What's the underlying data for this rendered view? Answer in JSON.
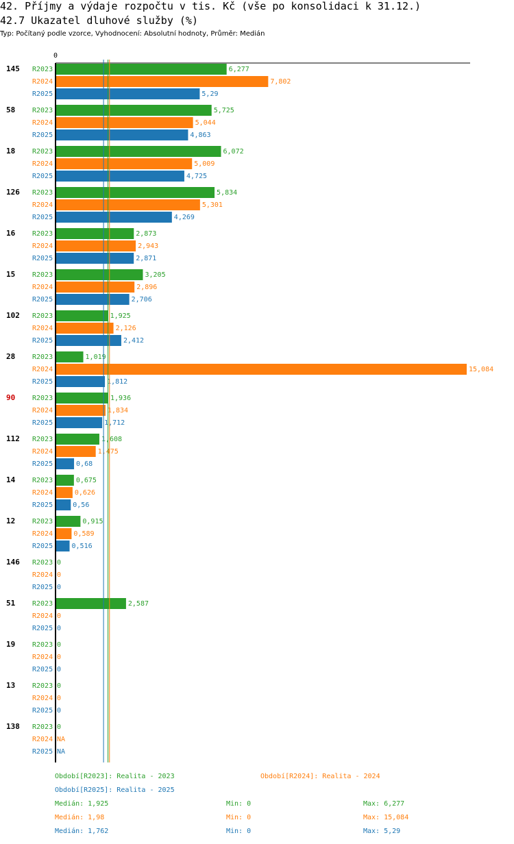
{
  "title": "42. Příjmy a výdaje rozpočtu v tis. Kč (vše po konsolidaci k 31.12.)",
  "subtitle": "42.7 Ukazatel dluhové služby (%)",
  "type_line": "Typ: Počítaný podle vzorce, Vyhodnocení: Absolutní hodnoty, Průměr: Medián",
  "colors": {
    "R2023": "#2ca02c",
    "R2024": "#ff7f0e",
    "R2025": "#1f77b4",
    "highlight": "#cc0000"
  },
  "chart_data": {
    "type": "bar",
    "orientation": "horizontal",
    "axis_zero_label": "0",
    "xlim": [
      0,
      15.084
    ],
    "series_names": [
      "R2023",
      "R2024",
      "R2025"
    ],
    "categories": [
      {
        "id": "145",
        "highlight": false,
        "values": [
          6.277,
          7.802,
          5.29
        ],
        "labels": [
          "6,277",
          "7,802",
          "5,29"
        ]
      },
      {
        "id": "58",
        "highlight": false,
        "values": [
          5.725,
          5.044,
          4.863
        ],
        "labels": [
          "5,725",
          "5,044",
          "4,863"
        ]
      },
      {
        "id": "18",
        "highlight": false,
        "values": [
          6.072,
          5.009,
          4.725
        ],
        "labels": [
          "6,072",
          "5,009",
          "4,725"
        ]
      },
      {
        "id": "126",
        "highlight": false,
        "values": [
          5.834,
          5.301,
          4.269
        ],
        "labels": [
          "5,834",
          "5,301",
          "4,269"
        ]
      },
      {
        "id": "16",
        "highlight": false,
        "values": [
          2.873,
          2.943,
          2.871
        ],
        "labels": [
          "2,873",
          "2,943",
          "2,871"
        ]
      },
      {
        "id": "15",
        "highlight": false,
        "values": [
          3.205,
          2.896,
          2.706
        ],
        "labels": [
          "3,205",
          "2,896",
          "2,706"
        ]
      },
      {
        "id": "102",
        "highlight": false,
        "values": [
          1.925,
          2.126,
          2.412
        ],
        "labels": [
          "1,925",
          "2,126",
          "2,412"
        ]
      },
      {
        "id": "28",
        "highlight": false,
        "values": [
          1.019,
          15.084,
          1.812
        ],
        "labels": [
          "1,019",
          "15,084",
          "1,812"
        ]
      },
      {
        "id": "90",
        "highlight": true,
        "values": [
          1.936,
          1.834,
          1.712
        ],
        "labels": [
          "1,936",
          "1,834",
          "1,712"
        ]
      },
      {
        "id": "112",
        "highlight": false,
        "values": [
          1.608,
          1.475,
          0.68
        ],
        "labels": [
          "1,608",
          "1,475",
          "0,68"
        ]
      },
      {
        "id": "14",
        "highlight": false,
        "values": [
          0.675,
          0.626,
          0.56
        ],
        "labels": [
          "0,675",
          "0,626",
          "0,56"
        ]
      },
      {
        "id": "12",
        "highlight": false,
        "values": [
          0.915,
          0.589,
          0.516
        ],
        "labels": [
          "0,915",
          "0,589",
          "0,516"
        ]
      },
      {
        "id": "146",
        "highlight": false,
        "values": [
          0,
          0,
          0
        ],
        "labels": [
          "0",
          "0",
          "0"
        ]
      },
      {
        "id": "51",
        "highlight": false,
        "values": [
          2.587,
          0,
          0
        ],
        "labels": [
          "2,587",
          "0",
          "0"
        ]
      },
      {
        "id": "19",
        "highlight": false,
        "values": [
          0,
          0,
          0
        ],
        "labels": [
          "0",
          "0",
          "0"
        ]
      },
      {
        "id": "13",
        "highlight": false,
        "values": [
          0,
          0,
          0
        ],
        "labels": [
          "0",
          "0",
          "0"
        ]
      },
      {
        "id": "138",
        "highlight": false,
        "values": [
          0,
          null,
          null
        ],
        "labels": [
          "0",
          "NA",
          "NA"
        ]
      }
    ],
    "medians": [
      1.925,
      1.98,
      1.762
    ]
  },
  "legend": {
    "r2023": "Období[R2023]: Realita - 2023",
    "r2024": "Období[R2024]: Realita - 2024",
    "r2025": "Období[R2025]: Realita - 2025",
    "stats": [
      {
        "median": "Medián: 1,925",
        "min": "Min: 0",
        "max": "Max: 6,277"
      },
      {
        "median": "Medián: 1,98",
        "min": "Min: 0",
        "max": "Max: 15,084"
      },
      {
        "median": "Medián: 1,762",
        "min": "Min: 0",
        "max": "Max: 5,29"
      }
    ]
  }
}
